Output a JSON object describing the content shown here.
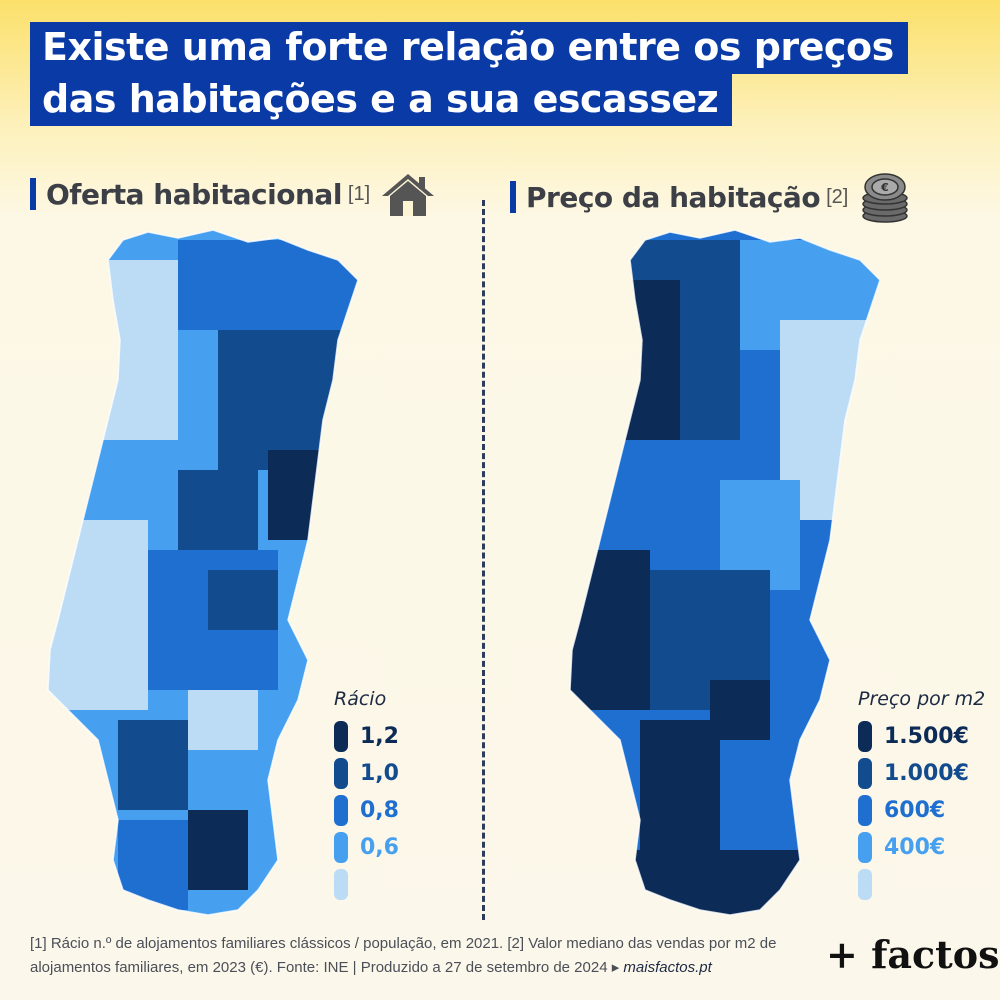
{
  "title": {
    "line1": "Existe uma forte relação entre os preços",
    "line2": "das habitações e a sua escassez"
  },
  "left_panel": {
    "title": "Oferta habitacional",
    "note": "[1]",
    "icon": "house-icon",
    "legend_title": "Rácio",
    "legend": [
      {
        "label": "1,2",
        "color": "#0c2b57"
      },
      {
        "label": "1,0",
        "color": "#124b8e"
      },
      {
        "label": "0,8",
        "color": "#1f6fd0"
      },
      {
        "label": "0,6",
        "color": "#47a0ef"
      },
      {
        "label": "",
        "color": "#bcdcf6"
      }
    ]
  },
  "right_panel": {
    "title": "Preço da habitação",
    "note": "[2]",
    "icon": "coins-icon",
    "legend_title": "Preço por m2",
    "legend": [
      {
        "label": "1.500€",
        "color": "#0c2b57"
      },
      {
        "label": "1.000€",
        "color": "#124b8e"
      },
      {
        "label": "600€",
        "color": "#1f6fd0"
      },
      {
        "label": "400€",
        "color": "#47a0ef"
      },
      {
        "label": "",
        "color": "#bcdcf6"
      }
    ]
  },
  "footnote": {
    "text": "[1] Rácio n.º de alojamentos familiares clássicos / população, em 2021. [2] Valor mediano das vendas por m2 de alojamentos familiares, em 2023 (€). Fonte: INE | Produzido a 27 de setembro de 2024 ▸",
    "site": "maisfactos.pt"
  },
  "logo": "+ factos"
}
